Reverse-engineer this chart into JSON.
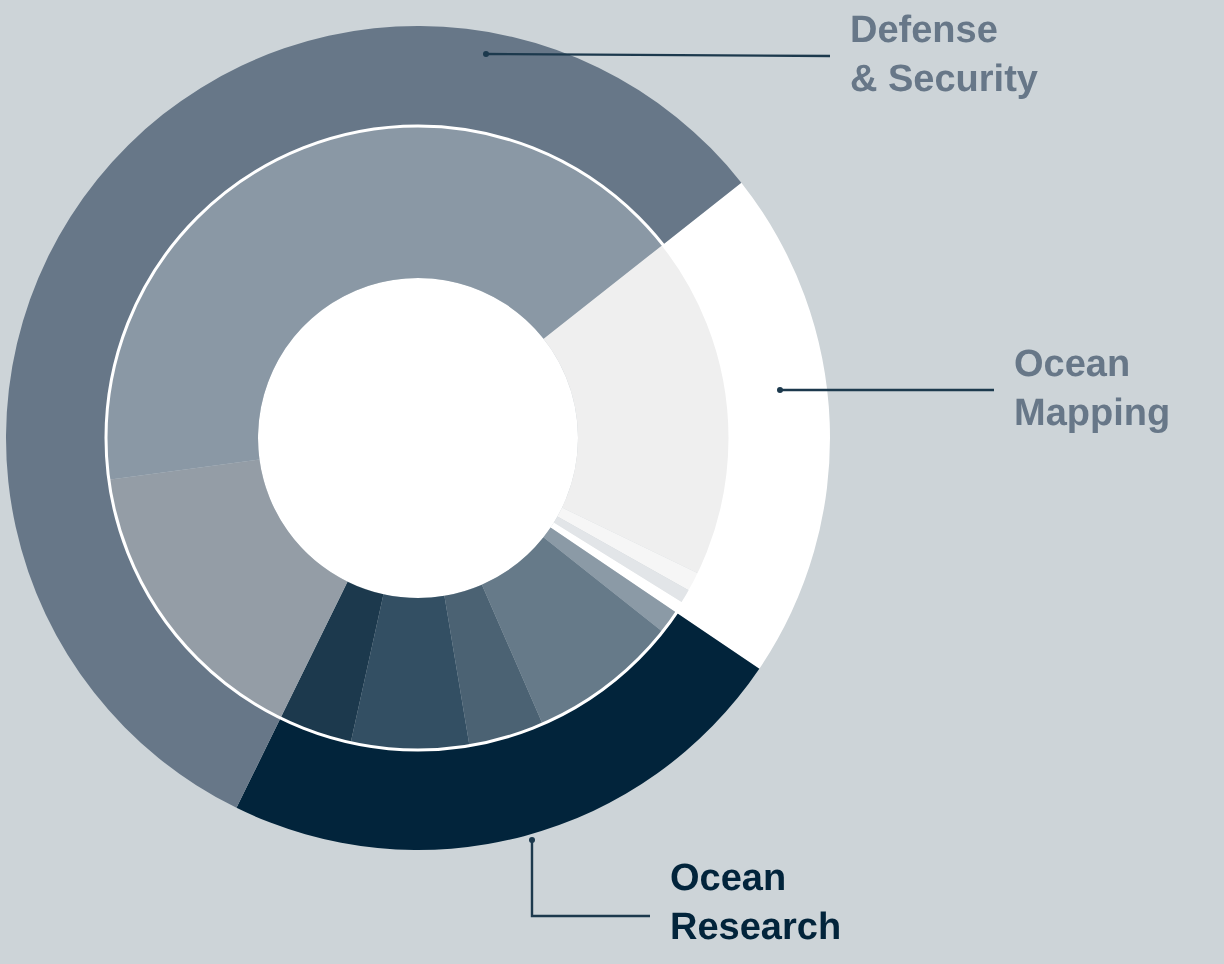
{
  "chart_data": [
    {
      "type": "donut",
      "categories": [
        "Ocean Mapping",
        "Ocean Research",
        "Defense & Security"
      ],
      "values": [
        20.1,
        22.8,
        57.1
      ],
      "colors": [
        "#ffffff",
        "#02243b",
        "#677788"
      ]
    },
    {
      "type": "donut",
      "categories": [
        null,
        null,
        null,
        null,
        null,
        null,
        null,
        null,
        null,
        null,
        null
      ],
      "values": [
        17.8,
        1.0,
        0.7,
        0.6,
        1.2,
        7.8,
        3.9,
        6.1,
        3.8,
        15.6,
        41.5
      ],
      "colors": [
        "#efefef",
        "#f6f6f6",
        "#e2e5e8",
        "#ffffff",
        "#8b9aa6",
        "#667a89",
        "#4b6273",
        "#334f63",
        "#1c394d",
        "#949da6",
        "#8a98a5"
      ]
    }
  ]
}
